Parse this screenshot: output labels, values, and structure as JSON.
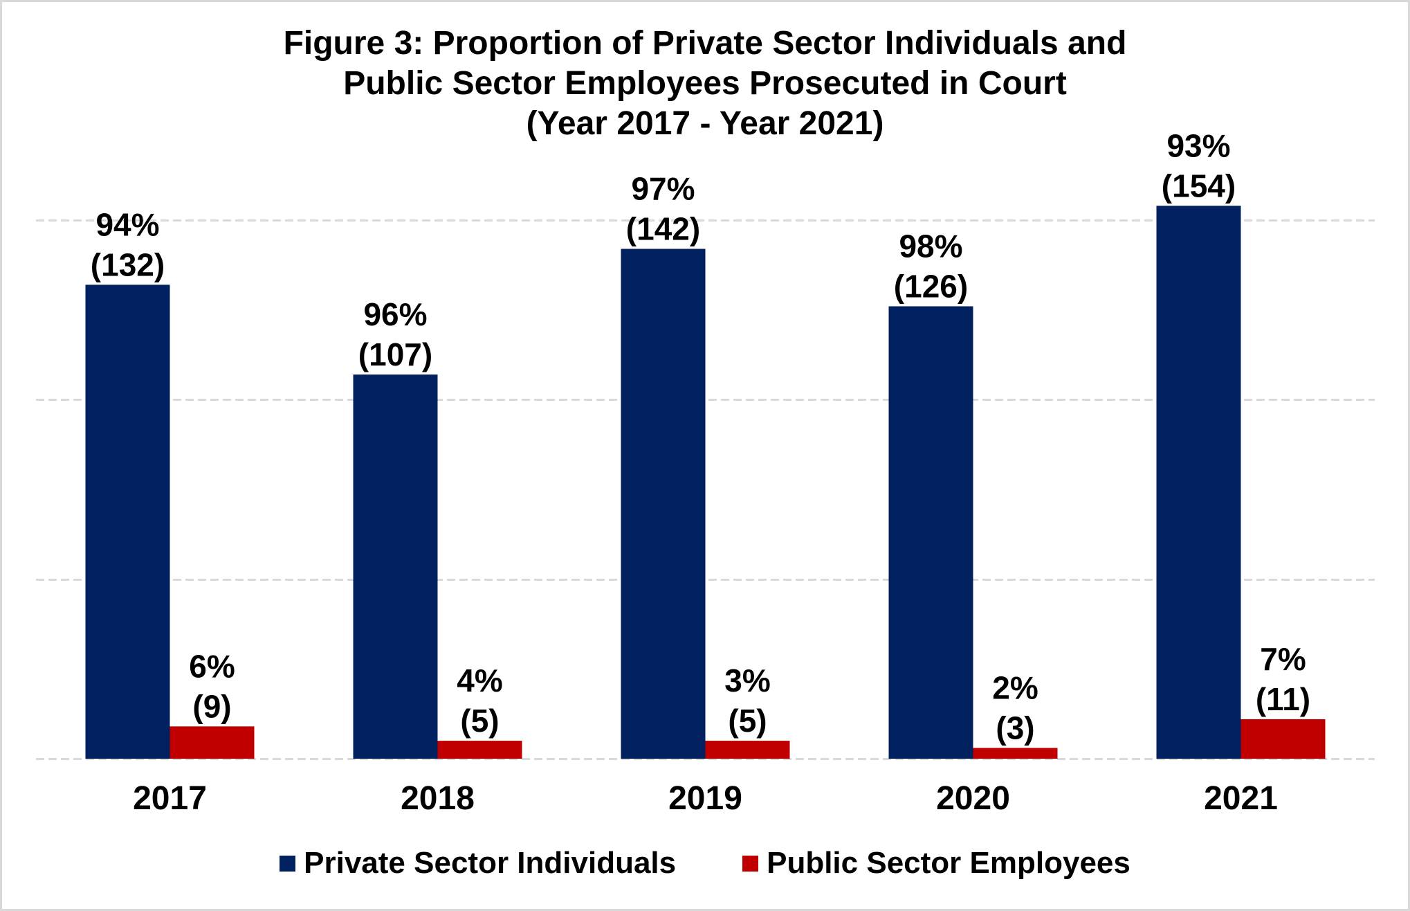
{
  "chart_data": {
    "type": "bar",
    "title": "Figure 3: Proportion of Private Sector Individuals and Public Sector Employees Prosecuted in Court (Year 2017 - Year 2021)",
    "title_lines": [
      "Figure 3: Proportion of Private Sector Individuals and",
      "Public Sector Employees Prosecuted in Court",
      "(Year 2017 - Year 2021)"
    ],
    "xlabel": "",
    "ylabel": "",
    "categories": [
      "2017",
      "2018",
      "2019",
      "2020",
      "2021"
    ],
    "ylim": [
      0,
      150
    ],
    "gridlines": [
      0,
      50,
      100,
      150
    ],
    "grid": true,
    "y_axis_labels_visible": false,
    "legend_position": "bottom",
    "series": [
      {
        "name": "Private Sector Individuals",
        "color": "#002060",
        "values": [
          132,
          107,
          142,
          126,
          154
        ],
        "percent_labels": [
          "94%",
          "96%",
          "97%",
          "98%",
          "93%"
        ],
        "count_labels": [
          "(132)",
          "(107)",
          "(142)",
          "(126)",
          "(154)"
        ]
      },
      {
        "name": "Public Sector Employees",
        "color": "#C00000",
        "values": [
          9,
          5,
          5,
          3,
          11
        ],
        "percent_labels": [
          "6%",
          "4%",
          "3%",
          "2%",
          "7%"
        ],
        "count_labels": [
          "(9)",
          "(5)",
          "(5)",
          "(3)",
          "(11)"
        ]
      }
    ]
  }
}
